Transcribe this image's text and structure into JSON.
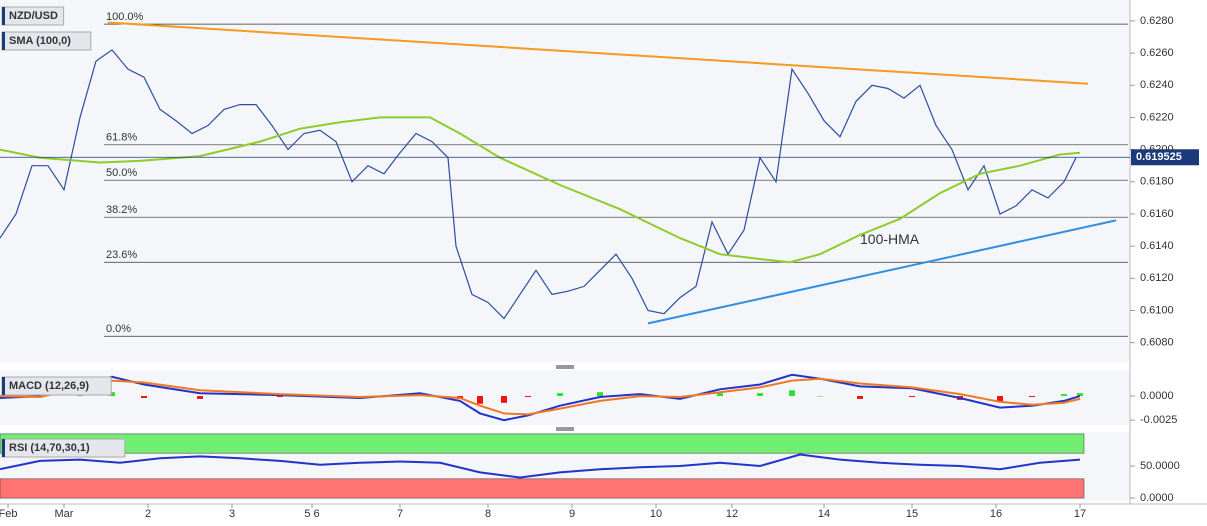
{
  "chart_data": [
    {
      "type": "line",
      "title": "NZD/USD",
      "subtitle": "SMA (100,0)",
      "xlim": [
        0,
        282
      ],
      "xticks": [
        {
          "value": 2,
          "label": "Feb"
        },
        {
          "value": 16,
          "label": "Mar"
        },
        {
          "value": 37,
          "label": "2"
        },
        {
          "value": 58,
          "label": "3"
        },
        {
          "value": 78,
          "label": "5 6"
        },
        {
          "value": 100,
          "label": "7"
        },
        {
          "value": 122,
          "label": "8"
        },
        {
          "value": 143,
          "label": "9"
        },
        {
          "value": 164,
          "label": "10"
        },
        {
          "value": 183,
          "label": "12"
        },
        {
          "value": 206,
          "label": "14"
        },
        {
          "value": 228,
          "label": "15"
        },
        {
          "value": 249,
          "label": "16"
        },
        {
          "value": 270,
          "label": "17"
        }
      ],
      "ylim": [
        0.6068,
        0.6293
      ],
      "yticks": [
        {
          "value": 0.608,
          "label": "0.6080"
        },
        {
          "value": 0.61,
          "label": "0.6100"
        },
        {
          "value": 0.612,
          "label": "0.6120"
        },
        {
          "value": 0.614,
          "label": "0.6140"
        },
        {
          "value": 0.616,
          "label": "0.6160"
        },
        {
          "value": 0.618,
          "label": "0.6180"
        },
        {
          "value": 0.62,
          "label": "0.6200"
        },
        {
          "value": 0.622,
          "label": "0.6220"
        },
        {
          "value": 0.624,
          "label": "0.6240"
        },
        {
          "value": 0.626,
          "label": "0.6260"
        },
        {
          "value": 0.628,
          "label": "0.6280"
        }
      ],
      "fib_levels": [
        {
          "label": "100.0%",
          "value": 0.6278
        },
        {
          "label": "61.8%",
          "value": 0.6203
        },
        {
          "label": "50.0%",
          "value": 0.6181
        },
        {
          "label": "38.2%",
          "value": 0.6158
        },
        {
          "label": "23.6%",
          "value": 0.613
        },
        {
          "label": "0.0%",
          "value": 0.6084
        }
      ],
      "last_price": {
        "value": 0.619525,
        "label": "0.619525"
      },
      "series": [
        {
          "color": "#2a4fa0",
          "x": [
            0,
            4,
            8,
            12,
            16,
            20,
            24,
            28,
            32,
            36,
            40,
            44,
            48,
            52,
            56,
            60,
            64,
            68,
            72,
            76,
            80,
            84,
            88,
            92,
            96,
            100,
            104,
            108,
            112,
            114,
            118,
            122,
            126,
            130,
            134,
            138,
            142,
            146,
            150,
            154,
            158,
            162,
            166,
            170,
            174,
            178,
            182,
            186,
            190,
            194,
            198,
            202,
            206,
            210,
            214,
            218,
            222,
            226,
            230,
            234,
            238,
            242,
            246,
            250,
            254,
            258,
            262,
            266,
            269
          ],
          "values": [
            0.6145,
            0.616,
            0.619,
            0.619,
            0.6175,
            0.622,
            0.6255,
            0.6262,
            0.625,
            0.6245,
            0.6225,
            0.6218,
            0.621,
            0.6215,
            0.6225,
            0.6228,
            0.6228,
            0.6215,
            0.62,
            0.621,
            0.6212,
            0.6205,
            0.618,
            0.619,
            0.6185,
            0.6198,
            0.621,
            0.6205,
            0.6195,
            0.614,
            0.611,
            0.6105,
            0.6095,
            0.611,
            0.6125,
            0.611,
            0.6112,
            0.6115,
            0.6125,
            0.6135,
            0.612,
            0.61,
            0.6098,
            0.6108,
            0.6115,
            0.6155,
            0.6135,
            0.615,
            0.6195,
            0.618,
            0.625,
            0.6235,
            0.6218,
            0.6208,
            0.623,
            0.624,
            0.6238,
            0.6232,
            0.624,
            0.6215,
            0.62,
            0.6175,
            0.619,
            0.616,
            0.6165,
            0.6175,
            0.617,
            0.618,
            0.6195
          ]
        },
        {
          "name": "100-HMA",
          "color": "#8fcc2a",
          "x": [
            0,
            10,
            25,
            35,
            50,
            65,
            75,
            85,
            95,
            107.5,
            115,
            125,
            140,
            155,
            170,
            180,
            190,
            197.5,
            205,
            215,
            225,
            235,
            245,
            255,
            265,
            270
          ],
          "values": [
            0.62,
            0.6195,
            0.6192,
            0.6193,
            0.6196,
            0.6205,
            0.6213,
            0.6217,
            0.622,
            0.622,
            0.621,
            0.6195,
            0.6178,
            0.6163,
            0.6145,
            0.6135,
            0.6132,
            0.613,
            0.6135,
            0.6147,
            0.6157,
            0.6173,
            0.6185,
            0.619,
            0.6197,
            0.6198
          ]
        },
        {
          "color": "#f59a1e",
          "x": [
            27,
            272
          ],
          "values": [
            0.6279,
            0.6241
          ]
        },
        {
          "color": "#2f8fe0",
          "x": [
            162,
            279
          ],
          "values": [
            0.6092,
            0.6156
          ]
        }
      ]
    },
    {
      "type": "line",
      "title": "MACD (12,26,9)",
      "xlim": [
        0,
        282
      ],
      "ylim": [
        -0.003,
        0.0027
      ],
      "yticks": [
        {
          "value": 0,
          "label": "0.0000"
        },
        {
          "value": -0.0025,
          "label": "-0.0025"
        }
      ],
      "series": [
        {
          "color": "#2233cc",
          "x": [
            0,
            10,
            20,
            28,
            36,
            50,
            70,
            90,
            105,
            115,
            120,
            126,
            132,
            140,
            150,
            160,
            170,
            180,
            190,
            198,
            205,
            215,
            228,
            240,
            250,
            258,
            266,
            270
          ],
          "values": [
            -0.0002,
            0,
            0.0012,
            0.002,
            0.0012,
            0.0003,
            0.0001,
            -0.0002,
            0.0003,
            -0.0005,
            -0.0018,
            -0.0025,
            -0.002,
            -0.001,
            -0.0001,
            0.0002,
            -0.0003,
            0.0007,
            0.0012,
            0.0022,
            0.0018,
            0.001,
            0.0008,
            -0.0002,
            -0.0012,
            -0.001,
            -0.0005,
            0
          ]
        },
        {
          "color": "#f07820",
          "x": [
            0,
            10,
            20,
            28,
            36,
            50,
            70,
            90,
            105,
            115,
            120,
            126,
            132,
            140,
            150,
            160,
            170,
            180,
            190,
            198,
            205,
            215,
            228,
            240,
            250,
            258,
            266,
            270
          ],
          "values": [
            0,
            -0.0001,
            0.0008,
            0.0016,
            0.0014,
            0.0006,
            0.0002,
            -0.0001,
            0.0001,
            -0.0002,
            -0.001,
            -0.0018,
            -0.0019,
            -0.0013,
            -0.0005,
            0,
            -0.0001,
            0.0004,
            0.0009,
            0.0016,
            0.0018,
            0.0013,
            0.0009,
            0.0002,
            -0.0006,
            -0.0009,
            -0.0007,
            -0.0003
          ]
        }
      ],
      "histogram": {
        "positive_color": "#33dd33",
        "negative_color": "#ee1111",
        "x": [
          0,
          10,
          20,
          28,
          36,
          50,
          70,
          90,
          105,
          115,
          120,
          126,
          132,
          140,
          150,
          160,
          170,
          180,
          190,
          198,
          205,
          215,
          228,
          240,
          250,
          258,
          266,
          270
        ],
        "values": [
          -0.0002,
          0.0001,
          0.0004,
          0.0004,
          -0.0002,
          -0.0003,
          -0.0001,
          -0.0001,
          0.0002,
          -0.0003,
          -0.0008,
          -0.0007,
          -0.0001,
          0.0003,
          0.0004,
          0.0002,
          -0.0002,
          0.0003,
          0.0003,
          0.0006,
          0,
          -0.0003,
          -0.0001,
          -0.0004,
          -0.0006,
          -0.0001,
          0.0002,
          0.0003
        ]
      }
    },
    {
      "type": "line",
      "title": "RSI (14,70,30,1)",
      "xlim": [
        0,
        282
      ],
      "ylim": [
        -3,
        103
      ],
      "yticks": [
        {
          "value": 50,
          "label": "50.0000"
        },
        {
          "value": 0,
          "label": "0.0000"
        }
      ],
      "bands": [
        {
          "from": 70,
          "to": 100,
          "color": "#70ee70"
        },
        {
          "from": 0,
          "to": 30,
          "color": "#ff7373"
        }
      ],
      "series": [
        {
          "color": "#2233cc",
          "x": [
            0,
            10,
            20,
            30,
            40,
            50,
            60,
            70,
            80,
            90,
            100,
            110,
            120,
            130,
            140,
            150,
            160,
            170,
            180,
            190,
            200,
            210,
            220,
            230,
            240,
            250,
            260,
            270
          ],
          "values": [
            45,
            58,
            60,
            55,
            62,
            65,
            62,
            58,
            52,
            55,
            57,
            55,
            40,
            32,
            40,
            45,
            48,
            50,
            55,
            50,
            68,
            60,
            55,
            52,
            50,
            45,
            55,
            60
          ]
        }
      ]
    }
  ]
}
